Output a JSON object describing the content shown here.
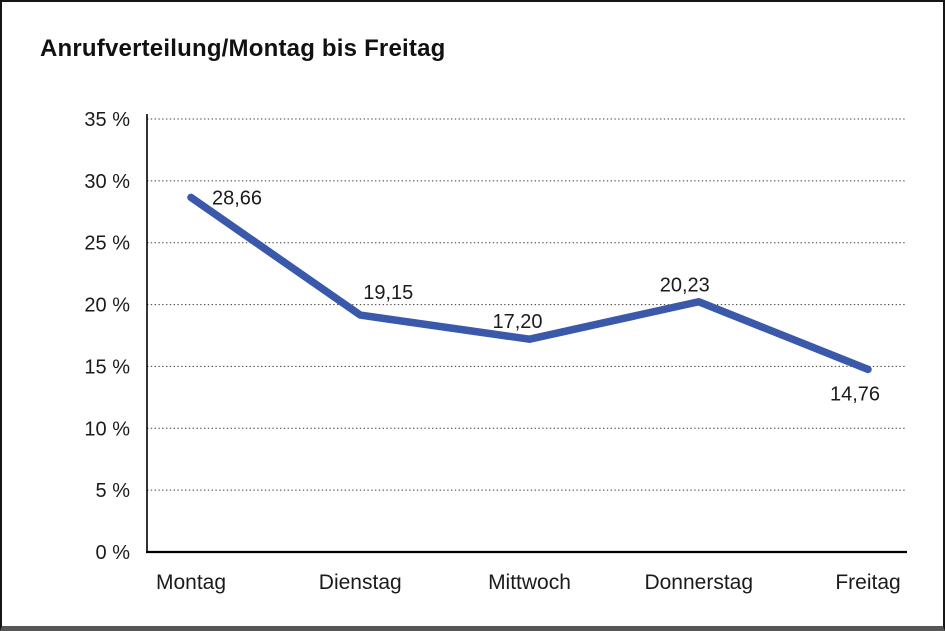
{
  "chart_data": {
    "type": "line",
    "title": "Anrufverteilung/Montag bis Freitag",
    "categories": [
      "Montag",
      "Dienstag",
      "Mittwoch",
      "Donnerstag",
      "Freitag"
    ],
    "values": [
      28.66,
      19.15,
      17.2,
      20.23,
      14.76
    ],
    "value_labels": [
      "28,66",
      "19,15",
      "17,20",
      "20,23",
      "14,76"
    ],
    "xlabel": "",
    "ylabel": "",
    "ylim": [
      0,
      35
    ],
    "y_tick_step": 5,
    "y_tick_labels": [
      "0 %",
      "5 %",
      "10 %",
      "15 %",
      "20 %",
      "25 %",
      "30 %",
      "35 %"
    ],
    "grid": "horizontal-dotted",
    "legend": "none",
    "line_color": "#3A59AB",
    "axis_color": "#000000",
    "text_color": "#1b1b1b"
  }
}
